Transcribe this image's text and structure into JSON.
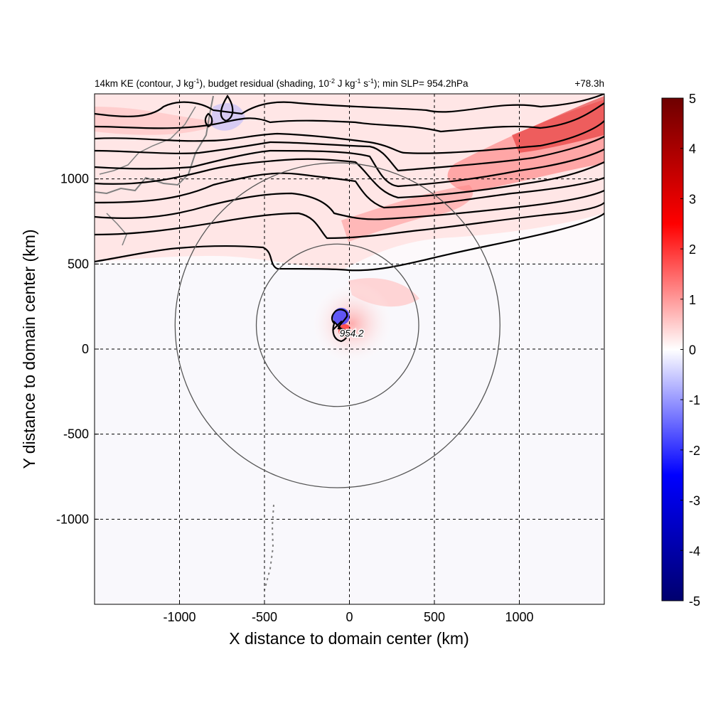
{
  "chart_data": {
    "type": "heatmap",
    "title_parts": {
      "a": "14km KE (contour, J kg",
      "a_sup": "-1",
      "b": "), budget residual (shading, 10",
      "b_sup": "-2",
      "c": " J kg",
      "c_sup": "-1",
      "d": " s",
      "d_sup": "-1",
      "e": "); min SLP= 954.2hPa"
    },
    "time_label": "+78.3h",
    "xlabel": "X distance to domain center (km)",
    "ylabel": "Y distance to domain center (km)",
    "xlim": [
      -1500,
      1500
    ],
    "ylim": [
      -1500,
      1500
    ],
    "xticks": [
      -1000,
      -500,
      0,
      500,
      1000
    ],
    "yticks": [
      -1000,
      -500,
      0,
      500,
      1000
    ],
    "grid": true,
    "colorbar": {
      "min": -5,
      "max": 5,
      "ticks": [
        5,
        4,
        3,
        2,
        1,
        0,
        -1,
        -2,
        -3,
        -4,
        -5
      ],
      "colors": [
        "#00006e",
        "#0000ff",
        "#ffffff",
        "#ff0000",
        "#6e0000"
      ]
    },
    "center": {
      "x": -70,
      "y": 140,
      "label": "954.2"
    },
    "range_circles_km": [
      500,
      1000
    ]
  }
}
